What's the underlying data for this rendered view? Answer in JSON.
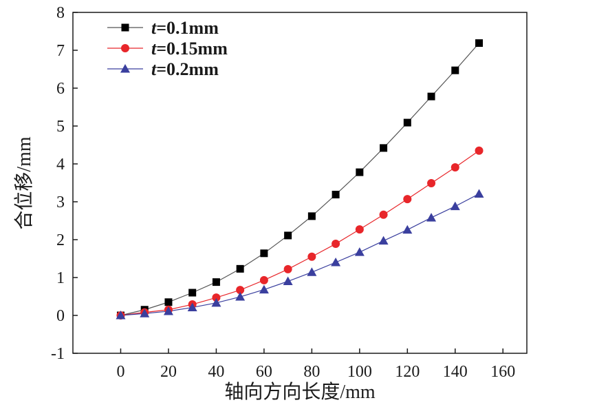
{
  "chart_data": {
    "type": "line",
    "xlabel": "轴向方向长度/mm",
    "ylabel": "合位移/mm",
    "xlim": [
      -20,
      170
    ],
    "ylim": [
      -1,
      8
    ],
    "xticks": [
      0,
      20,
      40,
      60,
      80,
      100,
      120,
      140,
      160
    ],
    "yticks": [
      -1,
      0,
      1,
      2,
      3,
      4,
      5,
      6,
      7,
      8
    ],
    "grid": false,
    "legend_position": "top-left",
    "x": [
      0,
      10,
      20,
      30,
      40,
      50,
      60,
      70,
      80,
      90,
      100,
      110,
      120,
      130,
      140,
      150
    ],
    "series": [
      {
        "name": "t=0.1mm",
        "name_italic": "t",
        "name_rest": "=0.1mm",
        "marker": "square",
        "color": "#000000",
        "line_color": "#555555",
        "values": [
          0,
          0.15,
          0.35,
          0.6,
          0.88,
          1.23,
          1.64,
          2.11,
          2.62,
          3.19,
          3.78,
          4.42,
          5.09,
          5.78,
          6.47,
          7.19
        ]
      },
      {
        "name": "t=0.15mm",
        "name_italic": "t",
        "name_rest": "=0.15mm",
        "marker": "circle",
        "color": "#e8262a",
        "line_color": "#e8262a",
        "values": [
          0,
          0.08,
          0.15,
          0.29,
          0.47,
          0.67,
          0.93,
          1.22,
          1.55,
          1.89,
          2.27,
          2.66,
          3.07,
          3.49,
          3.91,
          4.35
        ]
      },
      {
        "name": "t=0.2mm",
        "name_italic": "t",
        "name_rest": "=0.2mm",
        "marker": "triangle",
        "color": "#3a3f9e",
        "line_color": "#3a3f9e",
        "values": [
          0,
          0.05,
          0.11,
          0.21,
          0.33,
          0.49,
          0.68,
          0.9,
          1.14,
          1.4,
          1.67,
          1.97,
          2.26,
          2.58,
          2.88,
          3.21
        ]
      }
    ]
  }
}
